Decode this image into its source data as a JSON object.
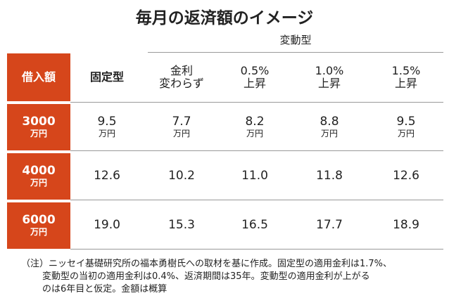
{
  "title": "毎月の返済額のイメージ",
  "group_header": "変動型",
  "table": {
    "headers": [
      [
        "借入額"
      ],
      [
        "固定型"
      ],
      [
        "金利",
        "変わらず"
      ],
      [
        "0.5%",
        "上昇"
      ],
      [
        "1.0%",
        "上昇"
      ],
      [
        "1.5%",
        "上昇"
      ]
    ],
    "rows": [
      {
        "label": [
          "3000",
          "万円"
        ],
        "cells": [
          [
            "9.5",
            "万円"
          ],
          [
            "7.7",
            "万円"
          ],
          [
            "8.2",
            "万円"
          ],
          [
            "8.8",
            "万円"
          ],
          [
            "9.5",
            "万円"
          ]
        ]
      },
      {
        "label": [
          "4000",
          "万円"
        ],
        "cells": [
          [
            "12.6"
          ],
          [
            "10.2"
          ],
          [
            "11.0"
          ],
          [
            "11.8"
          ],
          [
            "12.6"
          ]
        ]
      },
      {
        "label": [
          "6000",
          "万円"
        ],
        "cells": [
          [
            "19.0"
          ],
          [
            "15.3"
          ],
          [
            "16.5"
          ],
          [
            "17.7"
          ],
          [
            "18.9"
          ]
        ]
      }
    ]
  },
  "note": [
    "（注）ニッセイ基礎研究所の福本勇樹氏への取材を基に作成。固定型の適用金利は1.7%、",
    "変動型の当初の適用金利は0.4%、返済期間は35年。変動型の適用金利が上がる",
    "のは6年目と仮定。金額は概算"
  ]
}
